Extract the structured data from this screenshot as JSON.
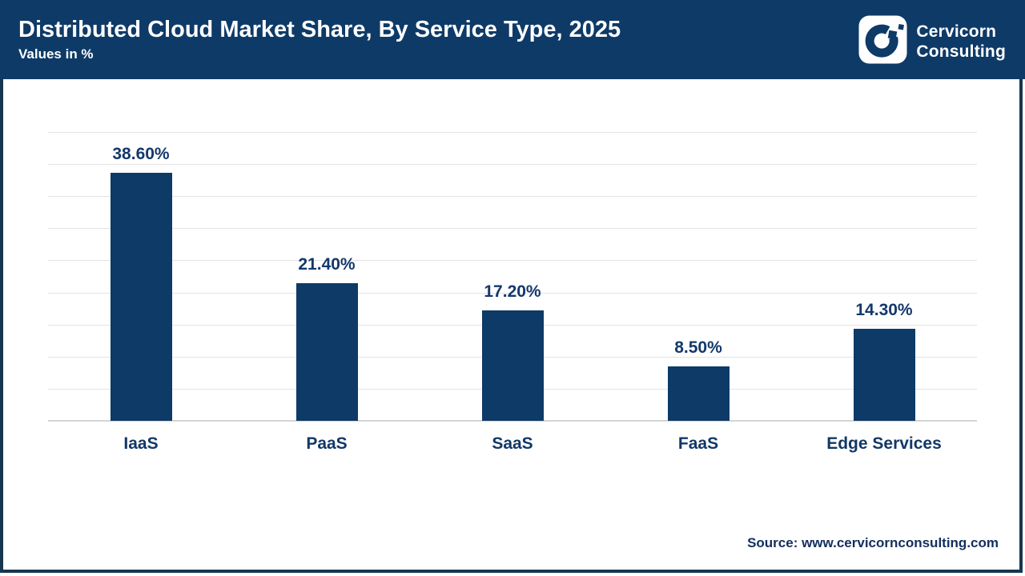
{
  "header": {
    "title": "Distributed Cloud Market Share, By Service Type, 2025",
    "subtitle": "Values in %",
    "brand": {
      "line1": "Cervicorn",
      "line2": "Consulting"
    }
  },
  "colors": {
    "header_bg": "#0e3a67",
    "bar": "#0d3a66",
    "label_text": "#14386b",
    "frame_border": "#17364f",
    "gridline": "#e3e3e3",
    "logo_mark": "#0e3a67",
    "logo_bg": "#ffffff"
  },
  "chart_data": {
    "type": "bar",
    "title": "Distributed Cloud Market Share, By Service Type, 2025",
    "xlabel": "",
    "ylabel": "Values in %",
    "categories": [
      "IaaS",
      "PaaS",
      "SaaS",
      "FaaS",
      "Edge Services"
    ],
    "values": [
      38.6,
      21.4,
      17.2,
      8.5,
      14.3
    ],
    "value_labels": [
      "38.60%",
      "21.40%",
      "17.20%",
      "8.50%",
      "14.30%"
    ],
    "ylim": [
      0,
      45
    ],
    "grid_step": 5,
    "grid": true,
    "legend": false,
    "y_axis_labels_shown": false
  },
  "footer": {
    "source": "Source: www.cervicornconsulting.com"
  }
}
